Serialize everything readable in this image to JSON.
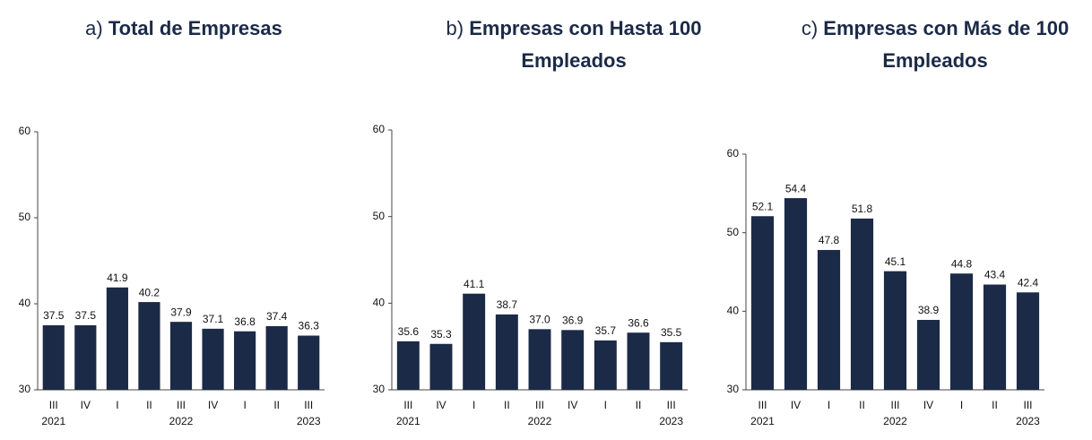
{
  "chart_data": [
    {
      "type": "bar",
      "label": "a)",
      "title": "Total de Empresas",
      "categories": [
        "III",
        "IV",
        "I",
        "II",
        "III",
        "IV",
        "I",
        "II",
        "III"
      ],
      "years": [
        "2021",
        null,
        null,
        null,
        "2022",
        null,
        null,
        null,
        "2023"
      ],
      "values": [
        37.5,
        37.5,
        41.9,
        40.2,
        37.9,
        37.1,
        36.8,
        37.4,
        36.3
      ],
      "value_labels": [
        "37.5",
        "37.5",
        "41.9",
        "40.2",
        "37.9",
        "37.1",
        "36.8",
        "37.4",
        "36.3"
      ],
      "color": "#1b2a47",
      "ylim": [
        30,
        60
      ],
      "yticks": [
        30,
        40,
        50,
        60
      ]
    },
    {
      "type": "bar",
      "label": "b)",
      "title": "Empresas con Hasta 100 Empleados",
      "categories": [
        "III",
        "IV",
        "I",
        "II",
        "III",
        "IV",
        "I",
        "II",
        "III"
      ],
      "years": [
        "2021",
        null,
        null,
        null,
        "2022",
        null,
        null,
        null,
        "2023"
      ],
      "values": [
        35.6,
        35.3,
        41.1,
        38.7,
        37.0,
        36.9,
        35.7,
        36.6,
        35.5
      ],
      "value_labels": [
        "35.6",
        "35.3",
        "41.1",
        "38.7",
        "37.0",
        "36.9",
        "35.7",
        "36.6",
        "35.5"
      ],
      "color": "#1b2a47",
      "ylim": [
        30,
        60
      ],
      "yticks": [
        30,
        40,
        50,
        60
      ]
    },
    {
      "type": "bar",
      "label": "c)",
      "title": "Empresas con Más de 100 Empleados",
      "categories": [
        "III",
        "IV",
        "I",
        "II",
        "III",
        "IV",
        "I",
        "II",
        "III"
      ],
      "years": [
        "2021",
        null,
        null,
        null,
        "2022",
        null,
        null,
        null,
        "2023"
      ],
      "values": [
        52.1,
        54.4,
        47.8,
        51.8,
        45.1,
        38.9,
        44.8,
        43.4,
        42.4
      ],
      "value_labels": [
        "52.1",
        "54.4",
        "47.8",
        "51.8",
        "45.1",
        "38.9",
        "44.8",
        "43.4",
        "42.4"
      ],
      "color": "#1b2a47",
      "ylim": [
        30,
        60
      ],
      "yticks": [
        30,
        40,
        50,
        60
      ]
    }
  ]
}
